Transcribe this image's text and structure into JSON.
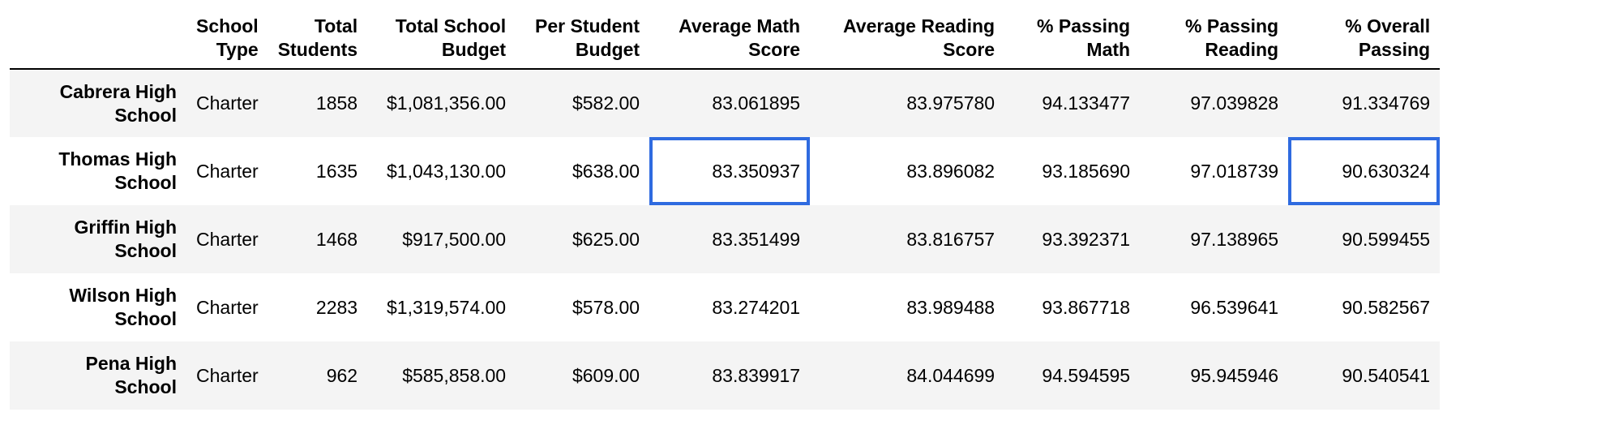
{
  "table": {
    "columns": [
      "",
      "School Type",
      "Total Students",
      "Total School Budget",
      "Per Student Budget",
      "Average Math Score",
      "Average Reading Score",
      "% Passing Math",
      "% Passing Reading",
      "% Overall Passing"
    ],
    "rows": [
      {
        "index": "Cabrera High School",
        "cells": [
          "Charter",
          "1858",
          "$1,081,356.00",
          "$582.00",
          "83.061895",
          "83.975780",
          "94.133477",
          "97.039828",
          "91.334769"
        ]
      },
      {
        "index": "Thomas High School",
        "cells": [
          "Charter",
          "1635",
          "$1,043,130.00",
          "$638.00",
          "83.350937",
          "83.896082",
          "93.185690",
          "97.018739",
          "90.630324"
        ]
      },
      {
        "index": "Griffin High School",
        "cells": [
          "Charter",
          "1468",
          "$917,500.00",
          "$625.00",
          "83.351499",
          "83.816757",
          "93.392371",
          "97.138965",
          "90.599455"
        ]
      },
      {
        "index": "Wilson High School",
        "cells": [
          "Charter",
          "2283",
          "$1,319,574.00",
          "$578.00",
          "83.274201",
          "83.989488",
          "93.867718",
          "96.539641",
          "90.582567"
        ]
      },
      {
        "index": "Pena High School",
        "cells": [
          "Charter",
          "962",
          "$585,858.00",
          "$609.00",
          "83.839917",
          "84.044699",
          "94.594595",
          "95.945946",
          "90.540541"
        ]
      }
    ]
  },
  "highlight_color": "#2f6be0"
}
